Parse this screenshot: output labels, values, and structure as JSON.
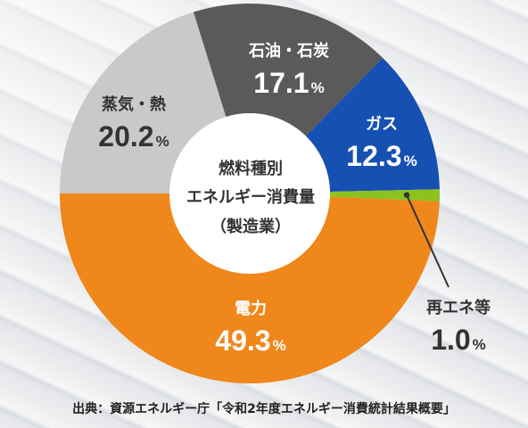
{
  "chart_data": {
    "type": "pie",
    "style": "donut",
    "center_title": [
      "燃料種別",
      "エネルギー消費量",
      "（製造業）"
    ],
    "unit": "%",
    "slices": [
      {
        "label": "電力",
        "value": 49.3,
        "color": "#ef871b",
        "label_color": "#ffffff"
      },
      {
        "label": "蒸気・熱",
        "value": 20.2,
        "color": "#c9c9c9",
        "label_color": "#333333"
      },
      {
        "label": "石油・石炭",
        "value": 17.1,
        "color": "#5a5a5a",
        "label_color": "#ffffff"
      },
      {
        "label": "ガス",
        "value": 12.3,
        "color": "#1650b3",
        "label_color": "#ffffff"
      },
      {
        "label": "再エネ等",
        "value": 1.0,
        "color": "#8cc21e",
        "label_color": "#333333"
      }
    ]
  },
  "source_note": "出典：資源エネルギー庁「令和2年度エネルギー消費統計結果概要」"
}
